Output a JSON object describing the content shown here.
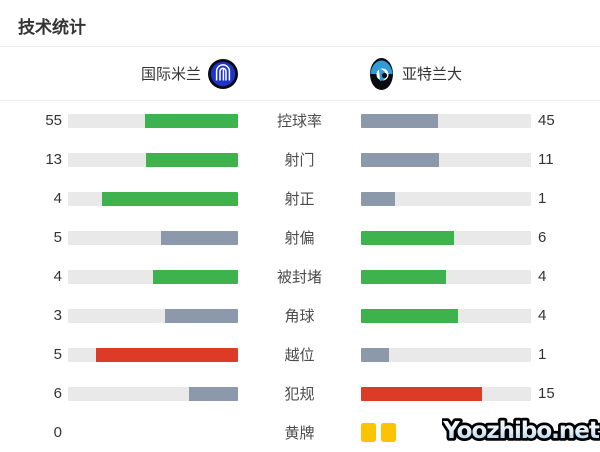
{
  "title": "技术统计",
  "teams": {
    "home": {
      "name": "国际米兰",
      "logo": "inter-milan-crest"
    },
    "away": {
      "name": "亚特兰大",
      "logo": "atalanta-crest"
    }
  },
  "colors": {
    "green": "#3eb24c",
    "slate": "#8c99ab",
    "red": "#dc3b28",
    "track": "#e9e9e9",
    "card": "#fcc400"
  },
  "chart_data": {
    "type": "bar",
    "title": "技术统计",
    "legend": [
      "国际米兰",
      "亚特兰大"
    ],
    "categories": [
      "控球率",
      "射门",
      "射正",
      "射偏",
      "被封堵",
      "角球",
      "越位",
      "犯规",
      "黄牌"
    ],
    "series": [
      {
        "name": "国际米兰",
        "values": [
          55,
          13,
          4,
          5,
          4,
          3,
          5,
          6,
          0
        ]
      },
      {
        "name": "亚特兰大",
        "values": [
          45,
          11,
          1,
          6,
          4,
          4,
          1,
          15,
          2
        ]
      }
    ]
  },
  "stats": [
    {
      "type": "bar",
      "label": "控球率",
      "home": {
        "value": "55",
        "pct": 55.0,
        "color": "green"
      },
      "away": {
        "value": "45",
        "pct": 45.0,
        "color": "slate"
      }
    },
    {
      "type": "bar",
      "label": "射门",
      "home": {
        "value": "13",
        "pct": 54.2,
        "color": "green"
      },
      "away": {
        "value": "11",
        "pct": 45.8,
        "color": "slate"
      }
    },
    {
      "type": "bar",
      "label": "射正",
      "home": {
        "value": "4",
        "pct": 80.0,
        "color": "green"
      },
      "away": {
        "value": "1",
        "pct": 20.0,
        "color": "slate"
      }
    },
    {
      "type": "bar",
      "label": "射偏",
      "home": {
        "value": "5",
        "pct": 45.5,
        "color": "slate"
      },
      "away": {
        "value": "6",
        "pct": 54.5,
        "color": "green"
      }
    },
    {
      "type": "bar",
      "label": "被封堵",
      "home": {
        "value": "4",
        "pct": 50.0,
        "color": "green"
      },
      "away": {
        "value": "4",
        "pct": 50.0,
        "color": "green"
      }
    },
    {
      "type": "bar",
      "label": "角球",
      "home": {
        "value": "3",
        "pct": 42.9,
        "color": "slate"
      },
      "away": {
        "value": "4",
        "pct": 57.1,
        "color": "green"
      }
    },
    {
      "type": "bar",
      "label": "越位",
      "home": {
        "value": "5",
        "pct": 83.3,
        "color": "red"
      },
      "away": {
        "value": "1",
        "pct": 16.7,
        "color": "slate"
      }
    },
    {
      "type": "bar",
      "label": "犯规",
      "home": {
        "value": "6",
        "pct": 28.6,
        "color": "slate"
      },
      "away": {
        "value": "15",
        "pct": 71.4,
        "color": "red"
      }
    },
    {
      "type": "cards",
      "label": "黄牌",
      "home": {
        "value": "0",
        "cards": 0
      },
      "away": {
        "value": "",
        "cards": 2
      }
    }
  ],
  "watermark": "Yoozhibo.net"
}
